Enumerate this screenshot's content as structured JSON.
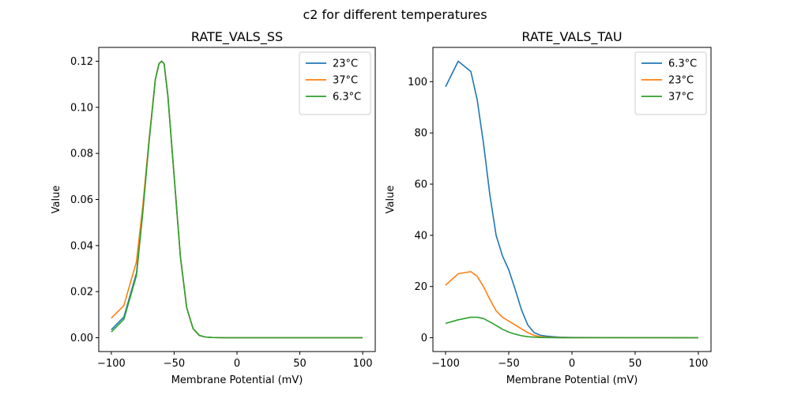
{
  "figure": {
    "suptitle": "c2 for different temperatures"
  },
  "chart_data": [
    {
      "type": "line",
      "title": "RATE_VALS_SS",
      "xlabel": "Membrane Potential (mV)",
      "ylabel": "Value",
      "xlim": [
        -110,
        110
      ],
      "ylim": [
        -0.006,
        0.126
      ],
      "xticks": [
        -100,
        -50,
        0,
        50,
        100
      ],
      "yticks": [
        0.0,
        0.02,
        0.04,
        0.06,
        0.08,
        0.1,
        0.12
      ],
      "ytick_labels": [
        "0.00",
        "0.02",
        "0.04",
        "0.06",
        "0.08",
        "0.10",
        "0.12"
      ],
      "legend_position": "top-right",
      "grid": false,
      "series": [
        {
          "name": "23°C",
          "color": "#1f77b4",
          "x": [
            -100,
            -90,
            -80,
            -75,
            -70,
            -65,
            -62,
            -60,
            -58,
            -55,
            -50,
            -45,
            -40,
            -35,
            -30,
            -25,
            -20,
            -10,
            0,
            100
          ],
          "y": [
            0.0035,
            0.009,
            0.028,
            0.055,
            0.085,
            0.112,
            0.119,
            0.12,
            0.119,
            0.105,
            0.07,
            0.035,
            0.013,
            0.004,
            0.001,
            0.0003,
            0.0001,
            0.0,
            0.0,
            0.0
          ]
        },
        {
          "name": "37°C",
          "color": "#ff7f0e",
          "x": [
            -100,
            -90,
            -80,
            -75,
            -70,
            -65,
            -62,
            -60,
            -58,
            -55,
            -50,
            -45,
            -40,
            -35,
            -30,
            -25,
            -20,
            -10,
            0,
            100
          ],
          "y": [
            0.0085,
            0.014,
            0.033,
            0.057,
            0.086,
            0.112,
            0.119,
            0.12,
            0.119,
            0.105,
            0.07,
            0.035,
            0.013,
            0.004,
            0.001,
            0.0003,
            0.0001,
            0.0,
            0.0,
            0.0
          ]
        },
        {
          "name": "6.3°C",
          "color": "#2ca02c",
          "x": [
            -100,
            -90,
            -80,
            -75,
            -70,
            -65,
            -62,
            -60,
            -58,
            -55,
            -50,
            -45,
            -40,
            -35,
            -30,
            -25,
            -20,
            -10,
            0,
            100
          ],
          "y": [
            0.0025,
            0.008,
            0.027,
            0.054,
            0.085,
            0.112,
            0.119,
            0.12,
            0.119,
            0.105,
            0.07,
            0.035,
            0.013,
            0.004,
            0.001,
            0.0003,
            0.0001,
            0.0,
            0.0,
            0.0
          ]
        }
      ]
    },
    {
      "type": "line",
      "title": "RATE_VALS_TAU",
      "xlabel": "Membrane Potential (mV)",
      "ylabel": "Value",
      "xlim": [
        -110,
        110
      ],
      "ylim": [
        -5.4,
        113.4
      ],
      "xticks": [
        -100,
        -50,
        0,
        50,
        100
      ],
      "yticks": [
        0,
        20,
        40,
        60,
        80,
        100
      ],
      "ytick_labels": [
        "0",
        "20",
        "40",
        "60",
        "80",
        "100"
      ],
      "legend_position": "top-right",
      "grid": false,
      "series": [
        {
          "name": "6.3°C",
          "color": "#1f77b4",
          "x": [
            -100,
            -90,
            -80,
            -75,
            -70,
            -65,
            -60,
            -55,
            -50,
            -45,
            -40,
            -35,
            -30,
            -25,
            -20,
            -10,
            0,
            100
          ],
          "y": [
            98,
            108,
            104,
            93,
            76,
            56,
            40,
            32,
            26.5,
            19,
            11,
            5,
            2,
            1,
            0.6,
            0.2,
            0.1,
            0.0
          ]
        },
        {
          "name": "23°C",
          "color": "#ff7f0e",
          "x": [
            -100,
            -90,
            -80,
            -75,
            -70,
            -65,
            -60,
            -55,
            -50,
            -45,
            -40,
            -35,
            -30,
            -25,
            -20,
            -10,
            0,
            100
          ],
          "y": [
            20.5,
            25,
            25.8,
            24,
            20,
            15,
            10.5,
            8,
            6.5,
            5,
            3.5,
            2,
            0.9,
            0.4,
            0.2,
            0.05,
            0.0,
            0.0
          ]
        },
        {
          "name": "37°C",
          "color": "#2ca02c",
          "x": [
            -100,
            -90,
            -80,
            -75,
            -70,
            -65,
            -60,
            -55,
            -50,
            -45,
            -40,
            -35,
            -30,
            -25,
            -20,
            -10,
            0,
            100
          ],
          "y": [
            5.6,
            7,
            8,
            8,
            7.5,
            6.2,
            4.8,
            3.3,
            2.2,
            1.4,
            0.8,
            0.4,
            0.2,
            0.1,
            0.05,
            0.0,
            0.0,
            0.0
          ]
        }
      ]
    }
  ]
}
